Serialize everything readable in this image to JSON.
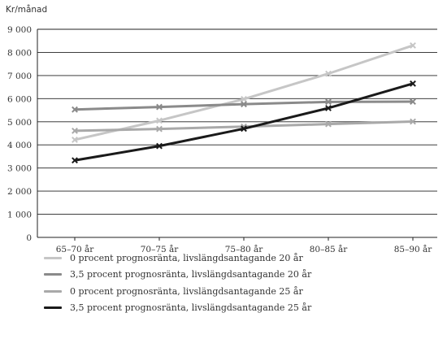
{
  "chart_data": {
    "type": "line",
    "unit_label": "Kr/månad",
    "categories": [
      "65–70 år",
      "70–75 år",
      "75–80 år",
      "80–85 år",
      "85–90 år"
    ],
    "ylim": [
      0,
      9000
    ],
    "yticks": [
      0,
      1000,
      2000,
      3000,
      4000,
      5000,
      6000,
      7000,
      8000,
      9000
    ],
    "ytick_labels": [
      "0",
      "1 000",
      "2 000",
      "3 000",
      "4 000",
      "5 000",
      "6 000",
      "7 000",
      "8 000",
      "9 000"
    ],
    "grid": true,
    "legend_position": "bottom",
    "series": [
      {
        "name": "0 procent prognosränta, livslängdsantagande 20 år",
        "values": [
          4220,
          5050,
          5980,
          7080,
          8300
        ],
        "color": "#c6c6c6",
        "marker": "x"
      },
      {
        "name": "3,5 procent prognosränta, livslängdsantagande 20 år",
        "values": [
          5530,
          5640,
          5760,
          5860,
          5870
        ],
        "color": "#8a8a8a",
        "marker": "x"
      },
      {
        "name": "0 procent prognosränta, livslängdsantagande 25 år",
        "values": [
          4610,
          4690,
          4790,
          4900,
          5010
        ],
        "color": "#a9a9a9",
        "marker": "x"
      },
      {
        "name": "3,5 procent prognosränta, livslängdsantagande 25 år",
        "values": [
          3330,
          3950,
          4700,
          5590,
          6650
        ],
        "color": "#1a1a1a",
        "marker": "x"
      }
    ]
  }
}
